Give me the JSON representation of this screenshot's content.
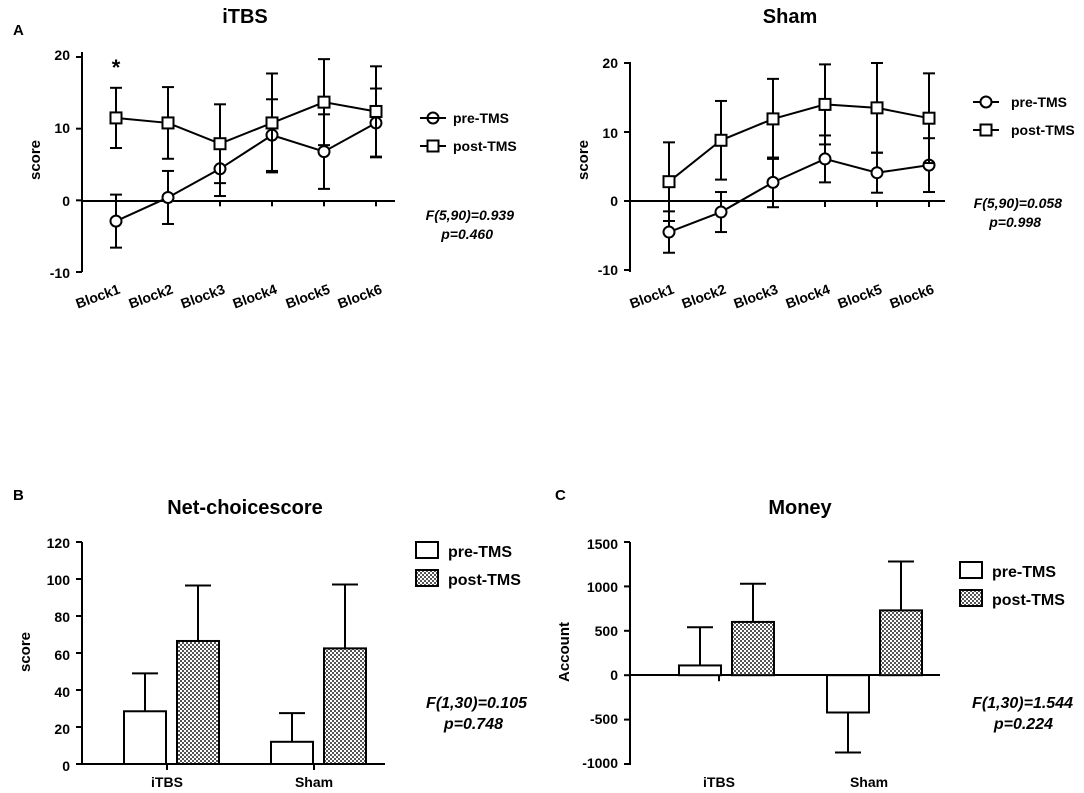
{
  "figure": {
    "panel_a_label": "A",
    "panel_b_label": "B",
    "panel_c_label": "C",
    "colors": {
      "ink": "#000000",
      "background": "#ffffff",
      "hatch": "#555555"
    }
  },
  "chart_data": [
    {
      "id": "itbs",
      "type": "line",
      "title": "iTBS",
      "ylabel": "score",
      "xlabel": "",
      "categories": [
        "Block1",
        "Block2",
        "Block3",
        "Block4",
        "Block5",
        "Block6"
      ],
      "ylim": [
        -10,
        20
      ],
      "yticks": [
        -10,
        0,
        10,
        20
      ],
      "series": [
        {
          "name": "pre-TMS",
          "marker": "circle",
          "values": [
            -2.9,
            0.4,
            4.4,
            9.1,
            6.8,
            10.8
          ],
          "errors": [
            3.7,
            3.7,
            3.8,
            5.0,
            5.2,
            4.8
          ]
        },
        {
          "name": "post-TMS",
          "marker": "square",
          "values": [
            11.5,
            10.8,
            7.9,
            10.8,
            13.7,
            12.4
          ],
          "errors": [
            4.2,
            5.0,
            5.5,
            6.9,
            6.0,
            6.3
          ]
        }
      ],
      "annotations": {
        "star": "*",
        "star_category": "Block1",
        "stat_f": "F(5,90)=0.939",
        "stat_p": "p=0.460"
      },
      "legend_position": "right"
    },
    {
      "id": "sham",
      "type": "line",
      "title": "Sham",
      "ylabel": "score",
      "xlabel": "",
      "categories": [
        "Block1",
        "Block2",
        "Block3",
        "Block4",
        "Block5",
        "Block6"
      ],
      "ylim": [
        -10,
        20
      ],
      "yticks": [
        -10,
        0,
        10,
        20
      ],
      "series": [
        {
          "name": "pre-TMS",
          "marker": "circle",
          "values": [
            -4.5,
            -1.6,
            2.7,
            6.1,
            4.1,
            5.2
          ],
          "errors": [
            3.0,
            2.9,
            3.6,
            3.4,
            2.9,
            3.9
          ]
        },
        {
          "name": "post-TMS",
          "marker": "square",
          "values": [
            2.8,
            8.8,
            11.9,
            14.0,
            13.5,
            12.0
          ],
          "errors": [
            5.7,
            5.7,
            5.8,
            5.8,
            6.5,
            6.5
          ]
        }
      ],
      "annotations": {
        "stat_f": "F(5,90)=0.058",
        "stat_p": "p=0.998"
      },
      "legend_position": "right"
    },
    {
      "id": "net",
      "type": "bar",
      "title": "Net-choicescore",
      "ylabel": "score",
      "xlabel": "",
      "categories": [
        "iTBS",
        "Sham"
      ],
      "ylim": [
        0,
        120
      ],
      "yticks": [
        0,
        20,
        40,
        60,
        80,
        100,
        120
      ],
      "series": [
        {
          "name": "pre-TMS",
          "pattern": "open",
          "values": [
            28.5,
            12.0
          ],
          "errors": [
            20.5,
            15.5
          ]
        },
        {
          "name": "post-TMS",
          "pattern": "checkered",
          "values": [
            66.5,
            62.5
          ],
          "errors": [
            30.0,
            34.5
          ]
        }
      ],
      "annotations": {
        "stat_f": "F(1,30)=0.105",
        "stat_p": "p=0.748"
      },
      "legend_position": "top-right"
    },
    {
      "id": "money",
      "type": "bar",
      "title": "Money",
      "ylabel": "Account",
      "xlabel": "",
      "categories": [
        "iTBS",
        "Sham"
      ],
      "ylim": [
        -1000,
        1500
      ],
      "yticks": [
        -1000,
        -500,
        0,
        500,
        1000,
        1500
      ],
      "series": [
        {
          "name": "pre-TMS",
          "pattern": "open",
          "values": [
            110,
            -420
          ],
          "errors": [
            430,
            450
          ]
        },
        {
          "name": "post-TMS",
          "pattern": "checkered",
          "values": [
            600,
            730
          ],
          "errors": [
            430,
            550
          ]
        }
      ],
      "annotations": {
        "stat_f": "F(1,30)=1.544",
        "stat_p": "p=0.224"
      },
      "legend_position": "top-right"
    }
  ]
}
